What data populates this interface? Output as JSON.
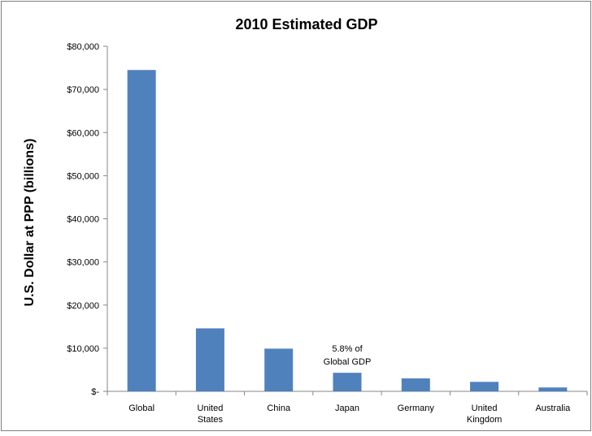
{
  "chart_data": {
    "type": "bar",
    "title": "2010 Estimated GDP",
    "xlabel": "",
    "ylabel": "U.S. Dollar at PPP (billions)",
    "categories": [
      [
        "Global"
      ],
      [
        "United",
        "States"
      ],
      [
        "China"
      ],
      [
        "Japan"
      ],
      [
        "Germany"
      ],
      [
        "United",
        "Kingdom"
      ],
      [
        "Australia"
      ]
    ],
    "values": [
      74500,
      14600,
      9900,
      4300,
      3000,
      2200,
      900
    ],
    "ylim": [
      0,
      80000
    ],
    "yticks": [
      0,
      10000,
      20000,
      30000,
      40000,
      50000,
      60000,
      70000,
      80000
    ],
    "ytick_labels": [
      "$-",
      "$10,000",
      "$20,000",
      "$30,000",
      "$40,000",
      "$50,000",
      "$60,000",
      "$70,000",
      "$80,000"
    ],
    "annotations": [
      {
        "category_index": 3,
        "lines": [
          "5.8% of",
          "Global GDP"
        ]
      }
    ],
    "bar_color": "#4f81bd",
    "grid": false,
    "legend": "none"
  }
}
